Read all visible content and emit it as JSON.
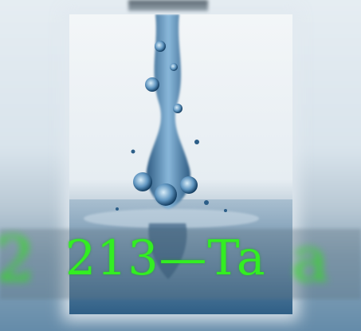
{
  "caption": {
    "text": "213—Ta",
    "left_blur_text": "2",
    "right_blur_text": "a",
    "color": "#33ee22"
  },
  "colors": {
    "water": "#3f78a6",
    "water_dark": "#1c4d78",
    "background": "#e6edf2"
  }
}
